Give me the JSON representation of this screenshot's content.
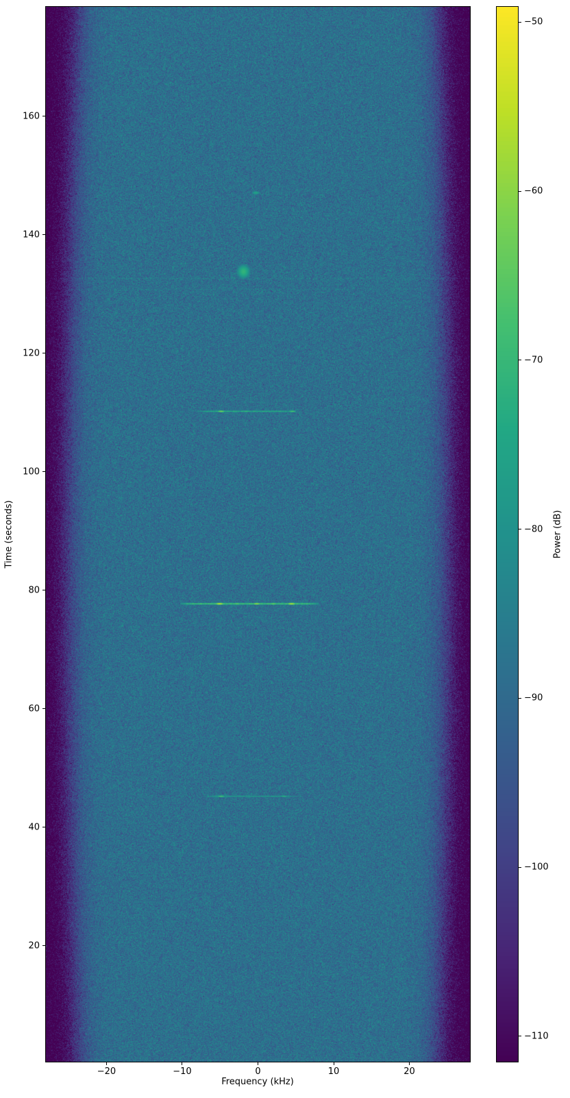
{
  "figure": {
    "background_color": "#ffffff",
    "spine_color": "#000000",
    "text_color": "#000000"
  },
  "chart_data": {
    "type": "heatmap",
    "subtype": "spectrogram-waterfall",
    "title": "",
    "xlabel": "Frequency (kHz)",
    "ylabel": "Time (seconds)",
    "colorbar_label": "Power (dB)",
    "colormap": "viridis",
    "grid": false,
    "x_range_khz": [
      -28,
      28
    ],
    "time_range_s": [
      0.4,
      178.5
    ],
    "power_range_db": [
      -111.5,
      -49.1
    ],
    "x_ticks": [
      {
        "value": -20,
        "label": "−20"
      },
      {
        "value": -10,
        "label": "−10"
      },
      {
        "value": 0,
        "label": "0"
      },
      {
        "value": 10,
        "label": "10"
      },
      {
        "value": 20,
        "label": "20"
      }
    ],
    "y_ticks": [
      {
        "value": 160,
        "label": "160"
      },
      {
        "value": 140,
        "label": "140"
      },
      {
        "value": 120,
        "label": "120"
      },
      {
        "value": 100,
        "label": "100"
      },
      {
        "value": 80,
        "label": "80"
      },
      {
        "value": 60,
        "label": "60"
      },
      {
        "value": 40,
        "label": "40"
      },
      {
        "value": 20,
        "label": "20"
      }
    ],
    "colorbar_ticks": [
      {
        "value": -50,
        "label": "−50"
      },
      {
        "value": -60,
        "label": "−60"
      },
      {
        "value": -70,
        "label": "−70"
      },
      {
        "value": -80,
        "label": "−80"
      },
      {
        "value": -90,
        "label": "−90"
      },
      {
        "value": -100,
        "label": "−100"
      },
      {
        "value": -110,
        "label": "−110"
      }
    ],
    "background_noise": {
      "center_db": -88.6,
      "noise_sigma_db": 3.9,
      "edge_halfwidth_khz_mid": 25.2,
      "edge_halfwidth_khz_ends": 23.9,
      "edge_rolloff_khz": 1.1,
      "edge_depth_db": 26,
      "seed": 42
    },
    "features": {
      "bursts": [
        {
          "time_s": 110.3,
          "freq_start_khz": -8.1,
          "freq_end_khz": 4.9,
          "level_db": -73,
          "jitter_db": 5,
          "hotspots": [
            {
              "freq_khz": -4.9,
              "db": -61
            },
            {
              "freq_khz": -1.6,
              "db": -69
            },
            {
              "freq_khz": 4.5,
              "db": -66
            }
          ]
        },
        {
          "time_s": 77.8,
          "freq_start_khz": -10.3,
          "freq_end_khz": 7.9,
          "level_db": -67,
          "jitter_db": 5,
          "hotspots": [
            {
              "freq_khz": -5.1,
              "db": -54
            },
            {
              "freq_khz": -2.8,
              "db": -63
            },
            {
              "freq_khz": -0.2,
              "db": -58
            },
            {
              "freq_khz": 2.0,
              "db": -62
            },
            {
              "freq_khz": 4.4,
              "db": -55
            }
          ]
        },
        {
          "time_s": 45.3,
          "freq_start_khz": -7.5,
          "freq_end_khz": 5.5,
          "level_db": -77,
          "jitter_db": 4,
          "hotspots": [
            {
              "freq_khz": -4.9,
              "db": -66
            },
            {
              "freq_khz": 3.4,
              "db": -71
            }
          ]
        }
      ],
      "blobs": [
        {
          "time_s": 133.9,
          "freq_khz": -1.9,
          "sigma_f_khz": 0.5,
          "sigma_t_s": 0.7,
          "peak_db": -71
        },
        {
          "time_s": 147.2,
          "freq_khz": -0.3,
          "sigma_f_khz": 0.35,
          "sigma_t_s": 0.18,
          "peak_db": -75
        }
      ],
      "bands": [
        {
          "time_s": 132.7,
          "delta_db": 2.2
        },
        {
          "time_s": 130.9,
          "delta_db": 1.2
        }
      ],
      "speckles": [
        {
          "time_s": 63.2,
          "freq_khz": 19.2,
          "db": -78
        },
        {
          "time_s": 119.0,
          "freq_khz": -3.0,
          "db": -80
        },
        {
          "time_s": 32.6,
          "freq_khz": 17.1,
          "db": -78
        },
        {
          "time_s": 12.3,
          "freq_khz": -15.4,
          "db": -81
        },
        {
          "time_s": 149.5,
          "freq_khz": -0.1,
          "db": -83
        }
      ]
    },
    "colormap_stops": [
      [
        0.0,
        "#440154"
      ],
      [
        0.1,
        "#482475"
      ],
      [
        0.2,
        "#414487"
      ],
      [
        0.3,
        "#355f8d"
      ],
      [
        0.4,
        "#2a788e"
      ],
      [
        0.5,
        "#21918c"
      ],
      [
        0.6,
        "#22a884"
      ],
      [
        0.7,
        "#44bf70"
      ],
      [
        0.8,
        "#7ad151"
      ],
      [
        0.9,
        "#bddf26"
      ],
      [
        1.0,
        "#fde725"
      ]
    ]
  }
}
